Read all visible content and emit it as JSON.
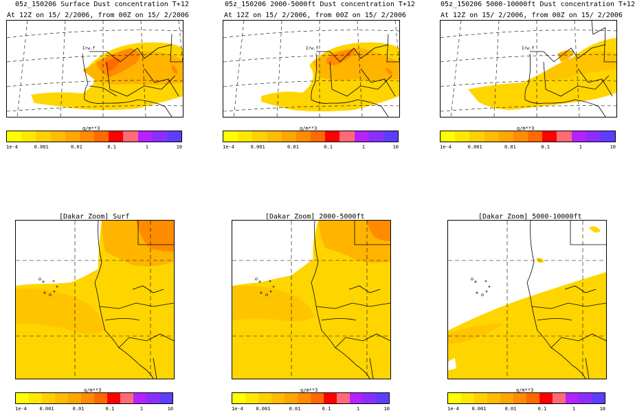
{
  "scale": {
    "unit": "g/m**3",
    "tick_labels": [
      "1e-4",
      "0.001",
      "0.01",
      "0.1",
      "1",
      "10"
    ],
    "colors": [
      "#ffff00",
      "#ffe800",
      "#ffd000",
      "#ffbb00",
      "#ffa500",
      "#ff8b00",
      "#ff6a00",
      "#ff0000",
      "#ff6a7a",
      "#b422ff",
      "#8a2fff",
      "#5f3dff"
    ]
  },
  "panels": [
    {
      "title": "05z_150206 Surface Dust concentration T+12",
      "subtitle": "At 12Z on 15/ 2/2006, from 00Z on 15/ 2/2006",
      "region_label": "Irw.f"
    },
    {
      "title": "05z_150206 2000-5000ft Dust concentration T+12",
      "subtitle": "At 12Z on 15/ 2/2006, from 00Z on 15/ 2/2006",
      "region_label": "Irw.f"
    },
    {
      "title": "05z_150206 5000-10000ft Dust concentration T+12",
      "subtitle": "At 12Z on 15/ 2/2006, from 00Z on 15/ 2/2006",
      "region_label": "Irw.f"
    },
    {
      "title": "[Dakar Zoom] Surf"
    },
    {
      "title": "[Dakar Zoom] 2000-5000ft"
    },
    {
      "title": "[Dakar Zoom] 5000-10000ft"
    }
  ]
}
